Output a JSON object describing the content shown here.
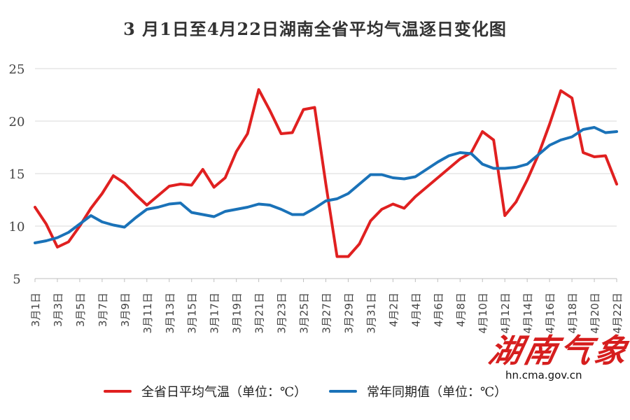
{
  "chart_data": {
    "type": "line",
    "title": "3 月1日至4月22日湖南全省平均气温逐日变化图",
    "ylim": [
      5,
      25
    ],
    "yticks": [
      5,
      10,
      15,
      20,
      25
    ],
    "grid": true,
    "legend_position": "bottom",
    "categories": [
      "3月1日",
      "3月2日",
      "3月3日",
      "3月4日",
      "3月5日",
      "3月6日",
      "3月7日",
      "3月8日",
      "3月9日",
      "3月10日",
      "3月11日",
      "3月12日",
      "3月13日",
      "3月14日",
      "3月15日",
      "3月16日",
      "3月17日",
      "3月18日",
      "3月19日",
      "3月20日",
      "3月21日",
      "3月22日",
      "3月23日",
      "3月24日",
      "3月25日",
      "3月26日",
      "3月27日",
      "3月28日",
      "3月29日",
      "3月30日",
      "3月31日",
      "4月1日",
      "4月2日",
      "4月3日",
      "4月4日",
      "4月5日",
      "4月6日",
      "4月7日",
      "4月8日",
      "4月9日",
      "4月10日",
      "4月11日",
      "4月12日",
      "4月13日",
      "4月14日",
      "4月15日",
      "4月16日",
      "4月17日",
      "4月18日",
      "4月19日",
      "4月20日",
      "4月21日",
      "4月22日"
    ],
    "tick_labels": [
      "3月1日",
      "3月3日",
      "3月5日",
      "3月7日",
      "3月9日",
      "3月11日",
      "3月13日",
      "3月15日",
      "3月17日",
      "3月19日",
      "3月21日",
      "3月23日",
      "3月25日",
      "3月27日",
      "3月29日",
      "3月31日",
      "4月2日",
      "4月4日",
      "4月6日",
      "4月8日",
      "4月10日",
      "4月12日",
      "4月14日",
      "4月16日",
      "4月18日",
      "4月20日",
      "4月22日"
    ],
    "series": [
      {
        "name": "全省日平均气温（单位：℃）",
        "color": "#e02020",
        "values": [
          11.8,
          10.2,
          8.0,
          8.5,
          10.0,
          11.7,
          13.1,
          14.8,
          14.1,
          13.0,
          12.0,
          12.9,
          13.8,
          14.0,
          13.9,
          15.4,
          13.7,
          14.6,
          17.1,
          18.8,
          23.0,
          21.0,
          18.8,
          18.9,
          21.1,
          21.3,
          14.0,
          7.1,
          7.1,
          8.3,
          10.5,
          11.6,
          12.1,
          11.7,
          12.8,
          13.7,
          14.6,
          15.5,
          16.4,
          17.0,
          19.0,
          18.2,
          11.0,
          12.3,
          14.4,
          16.8,
          19.7,
          22.9,
          22.2,
          17.0,
          16.6,
          16.7,
          14.0
        ]
      },
      {
        "name": "常年同期值（单位：℃）",
        "color": "#1a72b8",
        "values": [
          8.4,
          8.6,
          8.9,
          9.4,
          10.2,
          11.0,
          10.4,
          10.1,
          9.9,
          10.8,
          11.6,
          11.8,
          12.1,
          12.2,
          11.3,
          11.1,
          10.9,
          11.4,
          11.6,
          11.8,
          12.1,
          12.0,
          11.6,
          11.1,
          11.1,
          11.7,
          12.4,
          12.6,
          13.1,
          14.0,
          14.9,
          14.9,
          14.6,
          14.5,
          14.7,
          15.4,
          16.1,
          16.7,
          17.0,
          16.9,
          15.9,
          15.5,
          15.5,
          15.6,
          15.9,
          16.8,
          17.7,
          18.2,
          18.5,
          19.2,
          19.4,
          18.9,
          19.0
        ]
      }
    ]
  },
  "watermark": {
    "logo_text": "湖南气象",
    "url": "hn.cma.gov.cn"
  },
  "colors": {
    "grid": "#d9d9d9",
    "axis": "#bfbfbf",
    "text": "#444444"
  }
}
